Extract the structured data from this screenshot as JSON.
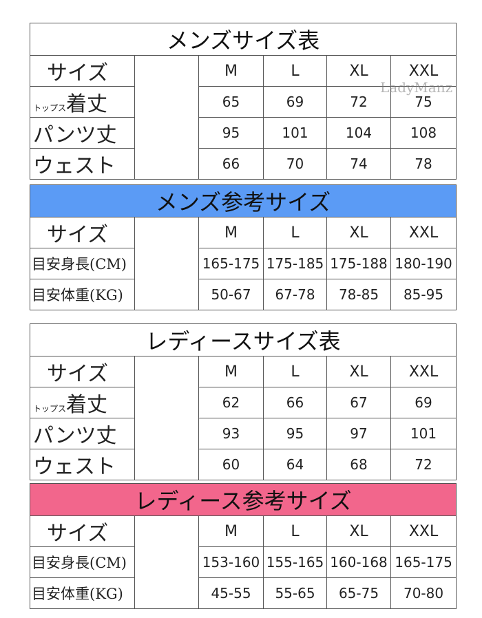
{
  "colors": {
    "mens_ref_header": "#5b9bf5",
    "ladies_ref_header": "#f2668c"
  },
  "watermark": "LadyManz",
  "tables": [
    {
      "title": "メンズサイズ表",
      "header": [
        "サイズ",
        "M",
        "L",
        "XL",
        "XXL"
      ],
      "rows": [
        {
          "prefix": "トップス",
          "label": "着丈",
          "values": [
            "65",
            "69",
            "72",
            "75"
          ]
        },
        {
          "label": "パンツ丈",
          "values": [
            "95",
            "101",
            "104",
            "108"
          ]
        },
        {
          "label": "ウェスト",
          "values": [
            "66",
            "70",
            "74",
            "78"
          ]
        }
      ]
    },
    {
      "title": "メンズ参考サイズ",
      "header": [
        "サイズ",
        "M",
        "L",
        "XL",
        "XXL"
      ],
      "rows": [
        {
          "label": "目安身長(CM)",
          "values": [
            "165-175",
            "175-185",
            "175-188",
            "180-190"
          ]
        },
        {
          "label": "目安体重(KG)",
          "values": [
            "50-67",
            "67-78",
            "78-85",
            "85-95"
          ]
        }
      ]
    },
    {
      "title": "レディースサイズ表",
      "header": [
        "サイズ",
        "M",
        "L",
        "XL",
        "XXL"
      ],
      "rows": [
        {
          "prefix": "トップス",
          "label": "着丈",
          "values": [
            "62",
            "66",
            "67",
            "69"
          ]
        },
        {
          "label": "パンツ丈",
          "values": [
            "93",
            "95",
            "97",
            "101"
          ]
        },
        {
          "label": "ウェスト",
          "values": [
            "60",
            "64",
            "68",
            "72"
          ]
        }
      ]
    },
    {
      "title": "レディース参考サイズ",
      "header": [
        "サイズ",
        "M",
        "L",
        "XL",
        "XXL"
      ],
      "rows": [
        {
          "label": "目安身長(CM)",
          "values": [
            "153-160",
            "155-165",
            "160-168",
            "165-175"
          ]
        },
        {
          "label": "目安体重(KG)",
          "values": [
            "45-55",
            "55-65",
            "65-75",
            "70-80"
          ]
        }
      ]
    }
  ]
}
